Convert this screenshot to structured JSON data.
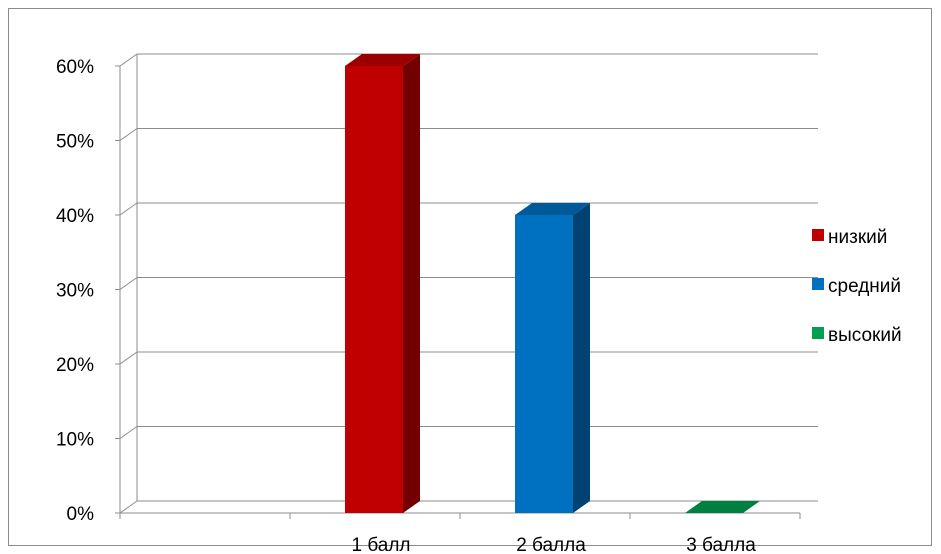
{
  "chart_data": {
    "type": "bar",
    "title": "",
    "xlabel": "",
    "ylabel": "",
    "categories": [
      "1 балл",
      "2 балла",
      "3 балла"
    ],
    "series": [
      {
        "name": "низкий",
        "color": "#c00000",
        "values": [
          60,
          0,
          0
        ]
      },
      {
        "name": "средний",
        "color": "#0070c0",
        "values": [
          0,
          40,
          0
        ]
      },
      {
        "name": "высокий",
        "color": "#00a050",
        "values": [
          0,
          0,
          0
        ]
      }
    ],
    "ylim": [
      0,
      60
    ],
    "yticks": [
      "0%",
      "10%",
      "20%",
      "30%",
      "40%",
      "50%",
      "60%"
    ],
    "grid": true,
    "legend_position": "right",
    "three_d": true
  }
}
